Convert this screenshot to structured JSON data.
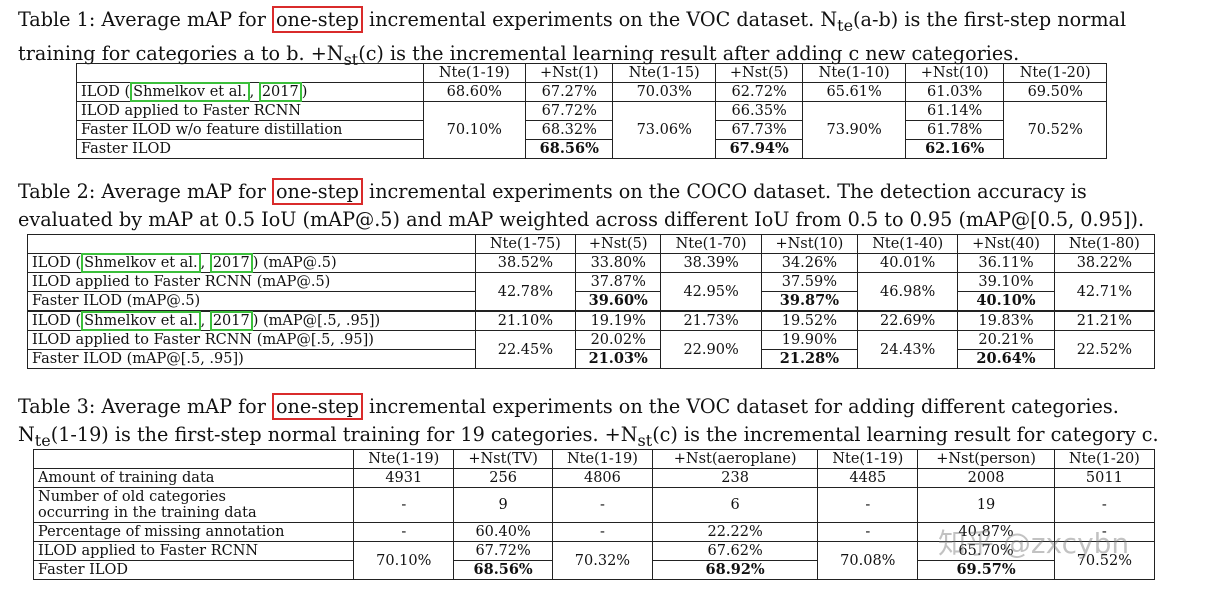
{
  "t1": {
    "cap": {
      "a": "Table 1:  Average mAP for ",
      "hl": "one-step",
      "b": " incremental experiments on the VOC dataset.  N",
      "s1": "te",
      "c": "(a-b) is the first-step normal",
      "d": "training for categories a to b. +N",
      "s2": "st",
      "e": "(c) is the incremental learning result after adding c new categories."
    },
    "hdr": [
      "Nte(1-19)",
      "+Nst(1)",
      "Nte(1-15)",
      "+Nst(5)",
      "Nte(1-10)",
      "+Nst(10)",
      "Nte(1-20)"
    ],
    "r1": {
      "a": "ILOD (",
      "cite1": "Shmelkov et al.",
      "c2": ", ",
      "cite2": "2017",
      "z": ")",
      "v": [
        "68.60%",
        "67.27%",
        "70.03%",
        "62.72%",
        "65.61%",
        "61.03%",
        "69.50%"
      ]
    },
    "r2": {
      "label": "ILOD applied to Faster RCNN",
      "v": [
        "67.72%",
        "66.35%",
        "61.14%"
      ]
    },
    "r3": {
      "label": "Faster ILOD w/o feature distillation",
      "v": [
        "68.32%",
        "67.73%",
        "61.78%"
      ]
    },
    "r4": {
      "label": "Faster ILOD",
      "v": [
        "68.56%",
        "67.94%",
        "62.16%"
      ]
    },
    "m": [
      "70.10%",
      "73.06%",
      "73.90%",
      "70.52%"
    ]
  },
  "t2": {
    "cap": {
      "a": "Table 2:    Average mAP for ",
      "hl": "one-step",
      "b": " incremental experiments on the COCO dataset.  The detection accuracy is",
      "c": "evaluated by mAP at 0.5 IoU (mAP@.5) and mAP weighted across different IoU from 0.5 to 0.95 (mAP@[0.5, 0.95])."
    },
    "hdr": [
      "Nte(1-75)",
      "+Nst(5)",
      "Nte(1-70)",
      "+Nst(10)",
      "Nte(1-40)",
      "+Nst(40)",
      "Nte(1-80)"
    ],
    "a1": {
      "a": "ILOD (",
      "cite1": "Shmelkov et al.",
      "c2": ", ",
      "cite2": "2017",
      "z": ") (mAP@.5)",
      "v": [
        "38.52%",
        "33.80%",
        "38.39%",
        "34.26%",
        "40.01%",
        "36.11%",
        "38.22%"
      ]
    },
    "a2": {
      "label": "ILOD applied to Faster RCNN (mAP@.5)",
      "v": [
        "37.87%",
        "37.59%",
        "39.10%"
      ]
    },
    "a3": {
      "label": "Faster ILOD (mAP@.5)",
      "v": [
        "39.60%",
        "39.87%",
        "40.10%"
      ]
    },
    "am": [
      "42.78%",
      "42.95%",
      "46.98%",
      "42.71%"
    ],
    "b1": {
      "a": "ILOD (",
      "cite1": "Shmelkov et al.",
      "c2": ", ",
      "cite2": "2017",
      "z": ") (mAP@[.5, .95])",
      "v": [
        "21.10%",
        "19.19%",
        "21.73%",
        "19.52%",
        "22.69%",
        "19.83%",
        "21.21%"
      ]
    },
    "b2": {
      "label": "ILOD applied to Faster RCNN (mAP@[.5, .95])",
      "v": [
        "20.02%",
        "19.90%",
        "20.21%"
      ]
    },
    "b3": {
      "label": "Faster ILOD (mAP@[.5, .95])",
      "v": [
        "21.03%",
        "21.28%",
        "20.64%"
      ]
    },
    "bm": [
      "22.45%",
      "22.90%",
      "24.43%",
      "22.52%"
    ]
  },
  "t3": {
    "cap": {
      "a": "Table 3:  Average mAP for ",
      "hl": "one-step",
      "b": " incremental experiments on the VOC dataset for adding different categories.",
      "c": "N",
      "s1": "te",
      "d": "(1-19) is the first-step normal training for 19 categories. +N",
      "s2": "st",
      "e": "(c) is the incremental learning result for category c."
    },
    "hdr": [
      "Nte(1-19)",
      "+Nst(TV)",
      "Nte(1-19)",
      "+Nst(aeroplane)",
      "Nte(1-19)",
      "+Nst(person)",
      "Nte(1-20)"
    ],
    "r1": {
      "label": "Amount of training data",
      "v": [
        "4931",
        "256",
        "4806",
        "238",
        "4485",
        "2008",
        "5011"
      ]
    },
    "r2": {
      "l1": "Number of old categories",
      "l2": "occurring in the training data",
      "v": [
        "-",
        "9",
        "-",
        "6",
        "-",
        "19",
        "-"
      ]
    },
    "r3": {
      "label": "Percentage of missing annotation",
      "v": [
        "-",
        "60.40%",
        "-",
        "22.22%",
        "-",
        "40.87%",
        "-"
      ]
    },
    "r4": {
      "label": "ILOD applied to Faster RCNN",
      "v": [
        "67.72%",
        "67.62%",
        "65.70%"
      ]
    },
    "r5": {
      "label": "Faster ILOD",
      "v": [
        "68.56%",
        "68.92%",
        "69.57%"
      ]
    },
    "m": [
      "70.10%",
      "70.32%",
      "70.08%",
      "70.52%"
    ]
  },
  "watermark": "知乎 @zxcybn"
}
